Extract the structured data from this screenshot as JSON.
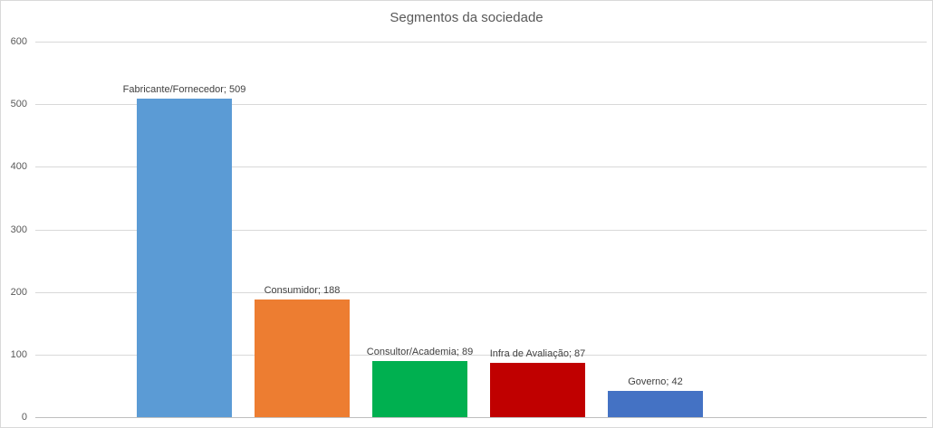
{
  "chart_data": {
    "type": "bar",
    "title": "Segmentos da sociedade",
    "categories": [
      "Fabricante/Fornecedor",
      "Consumidor",
      "Consultor/Academia",
      "Infra de Avaliação",
      "Governo"
    ],
    "values": [
      509,
      188,
      89,
      87,
      42
    ],
    "labels": [
      "Fabricante/Fornecedor; 509",
      "Consumidor; 188",
      "Consultor/Academia; 89",
      "Infra de Avaliação; 87",
      "Governo; 42"
    ],
    "colors": [
      "#5b9bd5",
      "#ed7d31",
      "#00b050",
      "#c00000",
      "#4472c4"
    ],
    "xlabel": "",
    "ylabel": "",
    "ylim": [
      0,
      600
    ],
    "yticks": [
      0,
      100,
      200,
      300,
      400,
      500,
      600
    ],
    "grid": "horizontal",
    "legend": "none"
  }
}
